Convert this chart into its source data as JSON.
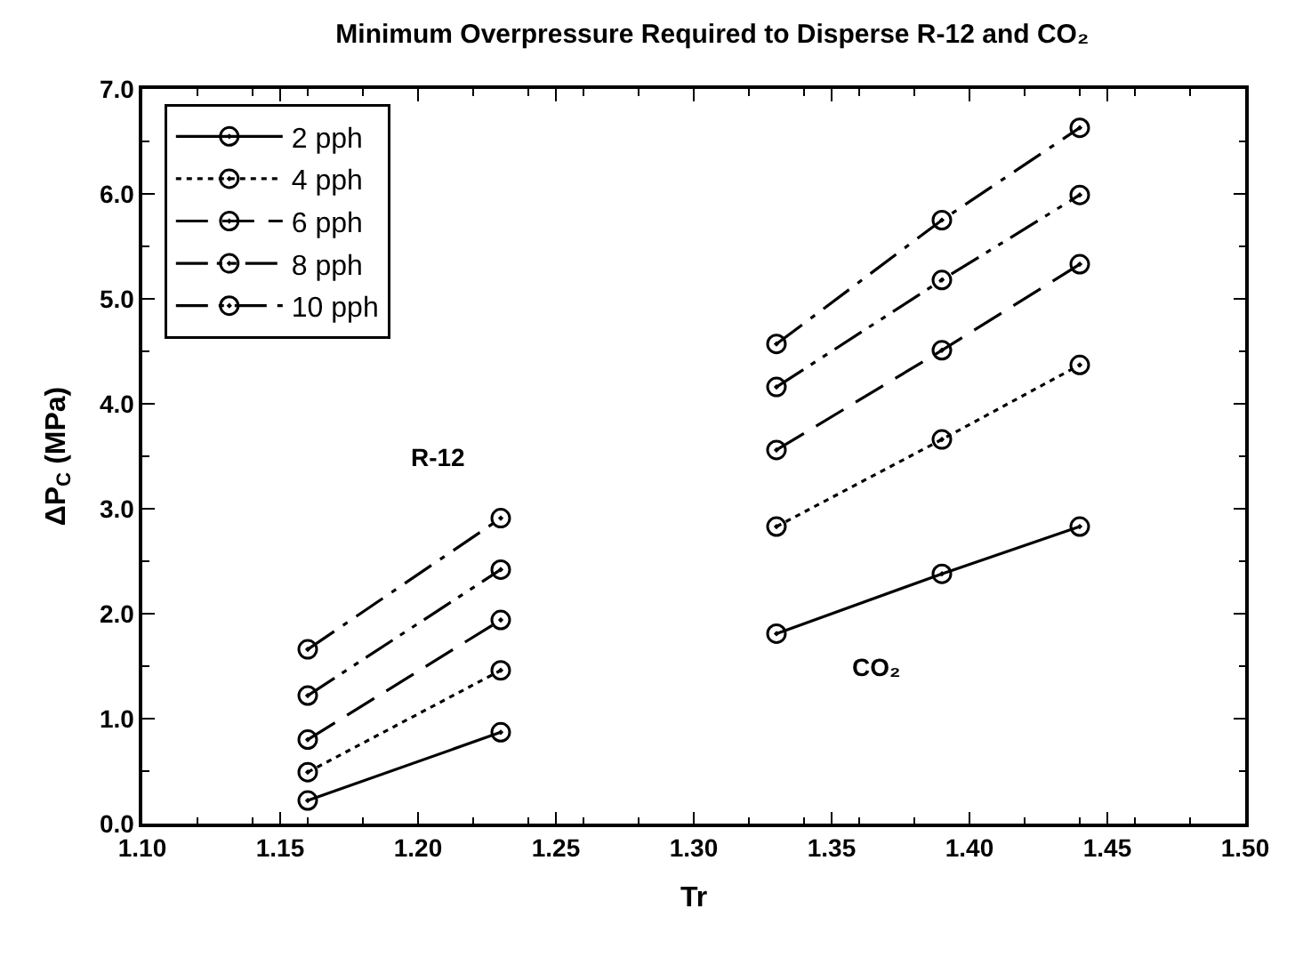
{
  "chart_data": {
    "type": "line",
    "title": "Minimum Overpressure Required to Disperse R-12 and CO₂",
    "xlabel": "Tr",
    "ylabel": "ΔP$_{C}$ (MPa)",
    "x": [
      1.16,
      1.23,
      1.28,
      1.33,
      1.39,
      1.44
    ],
    "series": [
      {
        "name": "2 pph",
        "color": "#000000",
        "line_style": "solid",
        "values": [
          0.22,
          0.87,
          null,
          1.81,
          2.38,
          2.83
        ]
      },
      {
        "name": "4 pph",
        "color": "#000000",
        "line_style": "dotted",
        "values": [
          0.49,
          1.46,
          null,
          2.83,
          3.66,
          4.37
        ]
      },
      {
        "name": "6 pph",
        "color": "#000000",
        "line_style": "longdash",
        "values": [
          0.8,
          1.94,
          null,
          3.56,
          4.51,
          5.33
        ]
      },
      {
        "name": "8 pph",
        "color": "#000000",
        "line_style": "longdashdotdot",
        "values": [
          1.22,
          2.42,
          null,
          4.16,
          5.18,
          5.99
        ]
      },
      {
        "name": "10 pph",
        "color": "#000000",
        "line_style": "longdashdot",
        "values": [
          1.66,
          2.91,
          null,
          4.57,
          5.75,
          6.63
        ]
      }
    ],
    "marker": "circle",
    "grid": false,
    "legend": "top left",
    "xlim": [
      1.1,
      1.5
    ],
    "xticks": [
      {
        "value": 1.1,
        "label": "1.10"
      },
      {
        "value": 1.15,
        "label": "1.15"
      },
      {
        "value": 1.2,
        "label": "1.20"
      },
      {
        "value": 1.25,
        "label": "1.25"
      },
      {
        "value": 1.3,
        "label": "1.30"
      },
      {
        "value": 1.35,
        "label": "1.35"
      },
      {
        "value": 1.4,
        "label": "1.40"
      },
      {
        "value": 1.45,
        "label": "1.45"
      },
      {
        "value": 1.5,
        "label": "1.50"
      }
    ],
    "ylim": [
      0,
      7
    ],
    "yticks": [
      {
        "value": 0,
        "label": "0.0"
      },
      {
        "value": 1,
        "label": "1.0"
      },
      {
        "value": 2,
        "label": "2.0"
      },
      {
        "value": 3,
        "label": "3.0"
      },
      {
        "value": 4,
        "label": "4.0"
      },
      {
        "value": 5,
        "label": "5.0"
      },
      {
        "value": 6,
        "label": "6.0"
      },
      {
        "value": 7,
        "label": "7.0"
      }
    ],
    "annotations": [
      "R-12",
      "CO₂"
    ]
  }
}
